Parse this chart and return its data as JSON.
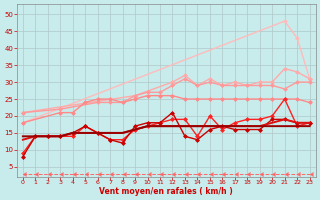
{
  "title": "",
  "xlabel": "Vent moyen/en rafales ( km/h )",
  "ylabel": "",
  "bg_color": "#c8ecec",
  "grid_color": "#b0c8c8",
  "xlim": [
    -0.5,
    23.5
  ],
  "ylim": [
    2,
    53
  ],
  "yticks": [
    5,
    10,
    15,
    20,
    25,
    30,
    35,
    40,
    45,
    50
  ],
  "xticks": [
    0,
    1,
    2,
    3,
    4,
    5,
    6,
    7,
    8,
    9,
    10,
    11,
    12,
    13,
    14,
    15,
    16,
    17,
    18,
    19,
    20,
    21,
    22,
    23
  ],
  "lines": [
    {
      "x": [
        0,
        21,
        22,
        23
      ],
      "y": [
        18,
        48,
        43,
        31
      ],
      "color": "#ffbbbb",
      "lw": 1.0,
      "marker": "D",
      "ms": 2,
      "ls": "-"
    },
    {
      "x": [
        0,
        9,
        12,
        13,
        14,
        15,
        16,
        17,
        18,
        19,
        20,
        21,
        22,
        23
      ],
      "y": [
        21,
        26,
        30,
        32,
        29,
        31,
        29,
        30,
        29,
        30,
        30,
        34,
        33,
        31
      ],
      "color": "#ffaaaa",
      "lw": 1.0,
      "marker": "D",
      "ms": 2,
      "ls": "-"
    },
    {
      "x": [
        0,
        3,
        6,
        7,
        8,
        9,
        10,
        11,
        12,
        13,
        14,
        15,
        16,
        17,
        18,
        19,
        20,
        21,
        22,
        23
      ],
      "y": [
        21,
        22,
        24,
        24,
        24,
        26,
        27,
        27,
        29,
        31,
        29,
        30,
        29,
        29,
        29,
        29,
        29,
        28,
        30,
        30
      ],
      "color": "#ff9999",
      "lw": 1.0,
      "marker": "D",
      "ms": 2,
      "ls": "-"
    },
    {
      "x": [
        0,
        3,
        4,
        5,
        6,
        7,
        8,
        9,
        10,
        11,
        12,
        13,
        14,
        15,
        16,
        17,
        18,
        19,
        20,
        21,
        22,
        23
      ],
      "y": [
        18,
        21,
        21,
        24,
        25,
        25,
        24,
        25,
        26,
        26,
        26,
        25,
        25,
        25,
        25,
        25,
        25,
        25,
        25,
        25,
        25,
        24
      ],
      "color": "#ff8888",
      "lw": 1.0,
      "marker": "D",
      "ms": 2,
      "ls": "-"
    },
    {
      "x": [
        0,
        1,
        2,
        3,
        4,
        5,
        6,
        7,
        8,
        9,
        10,
        11,
        12,
        13,
        14,
        15,
        16,
        17,
        18,
        19,
        20,
        21,
        22,
        23
      ],
      "y": [
        9,
        14,
        14,
        14,
        14,
        17,
        15,
        13,
        13,
        16,
        17,
        18,
        19,
        19,
        14,
        20,
        16,
        18,
        19,
        19,
        20,
        25,
        17,
        18
      ],
      "color": "#ff2222",
      "lw": 1.0,
      "marker": "D",
      "ms": 2,
      "ls": "-"
    },
    {
      "x": [
        0,
        1,
        2,
        3,
        4,
        5,
        6,
        7,
        8,
        9,
        10,
        11,
        12,
        13,
        14,
        15,
        16,
        17,
        18,
        19,
        20,
        21,
        22,
        23
      ],
      "y": [
        8,
        14,
        14,
        14,
        15,
        17,
        15,
        13,
        12,
        17,
        18,
        18,
        21,
        14,
        13,
        16,
        17,
        16,
        16,
        16,
        19,
        19,
        18,
        18
      ],
      "color": "#cc0000",
      "lw": 1.0,
      "marker": "D",
      "ms": 2,
      "ls": "-"
    },
    {
      "x": [
        0,
        1,
        2,
        3,
        4,
        5,
        6,
        7,
        8,
        9,
        10,
        11,
        12,
        13,
        14,
        15,
        16,
        17,
        18,
        19,
        20,
        21,
        22,
        23
      ],
      "y": [
        13,
        14,
        14,
        14,
        15,
        15,
        15,
        15,
        15,
        16,
        17,
        17,
        17,
        17,
        17,
        17,
        17,
        17,
        17,
        17,
        18,
        19,
        18,
        18
      ],
      "color": "#dd1111",
      "lw": 1.4,
      "marker": null,
      "ls": "-"
    },
    {
      "x": [
        0,
        1,
        2,
        3,
        4,
        5,
        6,
        7,
        8,
        9,
        10,
        11,
        12,
        13,
        14,
        15,
        16,
        17,
        18,
        19,
        20,
        21,
        22,
        23
      ],
      "y": [
        14,
        14,
        14,
        14,
        15,
        15,
        15,
        15,
        15,
        16,
        17,
        17,
        17,
        17,
        17,
        17,
        17,
        17,
        17,
        17,
        17,
        17,
        17,
        17
      ],
      "color": "#990000",
      "lw": 1.4,
      "marker": null,
      "ls": "-"
    },
    {
      "x": [
        0,
        1,
        2,
        3,
        4,
        5,
        6,
        7,
        8,
        9,
        10,
        11,
        12,
        13,
        14,
        15,
        16,
        17,
        18,
        19,
        20,
        21,
        22,
        23
      ],
      "y": [
        3,
        3,
        3,
        3,
        3,
        3,
        3,
        3,
        3,
        3,
        3,
        3,
        3,
        3,
        3,
        3,
        3,
        3,
        3,
        3,
        3,
        3,
        3,
        3
      ],
      "color": "#ff6666",
      "lw": 0.7,
      "marker": 4,
      "ms": 3,
      "ls": "--"
    }
  ]
}
